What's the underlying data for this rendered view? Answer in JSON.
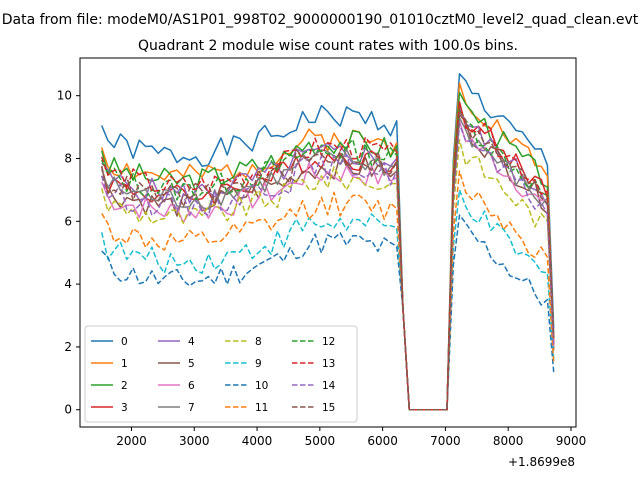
{
  "chart_data": {
    "type": "line",
    "suptitle": "Data from file: modeM0/AS1P01_998T02_9000000190_01010cztM0_level2_quad_clean.evt",
    "title": "Quadrant 2 module wise count rates with 100.0s bins.",
    "xlabel": "",
    "ylabel": "",
    "x_offset_label": "+1.8699e8",
    "xlim": [
      1180,
      9080
    ],
    "ylim": [
      -0.55,
      11.2
    ],
    "x_ticks": [
      2000,
      3000,
      4000,
      5000,
      6000,
      7000,
      8000,
      9000
    ],
    "x_tick_labels": [
      "2000",
      "3000",
      "4000",
      "5000",
      "6000",
      "7000",
      "8000",
      "9000"
    ],
    "y_ticks": [
      0,
      2,
      4,
      6,
      8,
      10
    ],
    "y_tick_labels": [
      "0",
      "2",
      "4",
      "6",
      "8",
      "10"
    ],
    "grid": false,
    "legend_position": "lower-left",
    "legend_columns": 4,
    "time": {
      "start": 1525,
      "bin": 100,
      "gap_start_bin": 48,
      "gap_end_bin": 56,
      "end_bin": 72
    },
    "series": [
      {
        "name": "0",
        "color": "#1f77b4",
        "style": "solid",
        "base": 8.6,
        "end_value": 2.6,
        "peak": 10.7
      },
      {
        "name": "1",
        "color": "#ff7f0e",
        "style": "solid",
        "base": 7.9,
        "end_value": 2.2,
        "peak": 10.4
      },
      {
        "name": "2",
        "color": "#2ca02c",
        "style": "solid",
        "base": 7.8,
        "end_value": 2.0,
        "peak": 10.1
      },
      {
        "name": "3",
        "color": "#d62728",
        "style": "solid",
        "base": 7.3,
        "end_value": 2.3,
        "peak": 9.8
      },
      {
        "name": "4",
        "color": "#9467bd",
        "style": "solid",
        "base": 7.4,
        "end_value": 2.1,
        "peak": 9.6
      },
      {
        "name": "5",
        "color": "#8c564b",
        "style": "solid",
        "base": 7.0,
        "end_value": 1.9,
        "peak": 9.4
      },
      {
        "name": "6",
        "color": "#e377c2",
        "style": "solid",
        "base": 6.8,
        "end_value": 2.0,
        "peak": 9.2
      },
      {
        "name": "7",
        "color": "#7f7f7f",
        "style": "solid",
        "base": 7.2,
        "end_value": 2.4,
        "peak": 9.3
      },
      {
        "name": "8",
        "color": "#bcbd22",
        "style": "dashed",
        "base": 6.6,
        "end_value": 2.0,
        "peak": 8.6
      },
      {
        "name": "9",
        "color": "#17becf",
        "style": "dashed",
        "base": 5.2,
        "end_value": 1.6,
        "peak": 7.0
      },
      {
        "name": "10",
        "color": "#1f77b4",
        "style": "dashed",
        "base": 4.6,
        "end_value": 1.2,
        "peak": 6.2
      },
      {
        "name": "11",
        "color": "#ff7f0e",
        "style": "dashed",
        "base": 5.8,
        "end_value": 1.5,
        "peak": 7.6
      },
      {
        "name": "12",
        "color": "#2ca02c",
        "style": "dashed",
        "base": 7.5,
        "end_value": 2.2,
        "peak": 9.6
      },
      {
        "name": "13",
        "color": "#d62728",
        "style": "dashed",
        "base": 7.6,
        "end_value": 2.1,
        "peak": 9.8
      },
      {
        "name": "14",
        "color": "#9467bd",
        "style": "dashed",
        "base": 7.0,
        "end_value": 2.0,
        "peak": 9.1
      },
      {
        "name": "15",
        "color": "#8c564b",
        "style": "dashed",
        "base": 7.3,
        "end_value": 2.3,
        "peak": 9.5
      }
    ]
  }
}
